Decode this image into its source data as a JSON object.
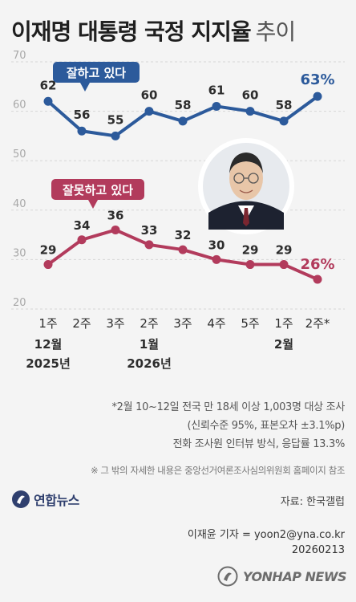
{
  "title": {
    "bold": "이재명 대통령 국정 지지율",
    "light": "추이"
  },
  "chart_data": {
    "type": "line",
    "yticks": [
      20,
      30,
      40,
      50,
      60,
      70
    ],
    "ylim": [
      20,
      70
    ],
    "grid": true,
    "categories": [
      {
        "week": "1주",
        "month": "12월",
        "year": "2025년"
      },
      {
        "week": "2주",
        "month": "",
        "year": ""
      },
      {
        "week": "3주",
        "month": "",
        "year": ""
      },
      {
        "week": "2주",
        "month": "1월",
        "year": "2026년"
      },
      {
        "week": "3주",
        "month": "",
        "year": ""
      },
      {
        "week": "4주",
        "month": "",
        "year": ""
      },
      {
        "week": "5주",
        "month": "",
        "year": ""
      },
      {
        "week": "1주",
        "month": "2월",
        "year": ""
      },
      {
        "week": "2주*",
        "month": "",
        "year": ""
      }
    ],
    "series": [
      {
        "name": "잘하고 있다",
        "color": "#2c5a9b",
        "values": [
          62,
          56,
          55,
          60,
          58,
          61,
          60,
          58,
          63
        ],
        "last_label": "63%"
      },
      {
        "name": "잘못하고 있다",
        "color": "#b23b5c",
        "values": [
          29,
          34,
          36,
          33,
          32,
          30,
          29,
          29,
          26
        ],
        "last_label": "26%"
      }
    ]
  },
  "notes": [
    "*2월 10~12일 전국 만 18세 이상 1,003명 대상 조사",
    "(신뢰수준 95%, 표본오차 ±3.1%p)",
    "전화 조사원 인터뷰 방식, 응답률 13.3%"
  ],
  "ref_note": "※ 그 밖의 자세한 내용은 중앙선거여론조사심의위원회 홈페이지 참조",
  "logo": {
    "text": "연합뉴스",
    "color": "#2f3f6e"
  },
  "source": "자료: 한국갤럽",
  "reporter": "이재윤 기자 = yoon2@yna.co.kr",
  "date": "20260213",
  "watermark": "YONHAP NEWS"
}
